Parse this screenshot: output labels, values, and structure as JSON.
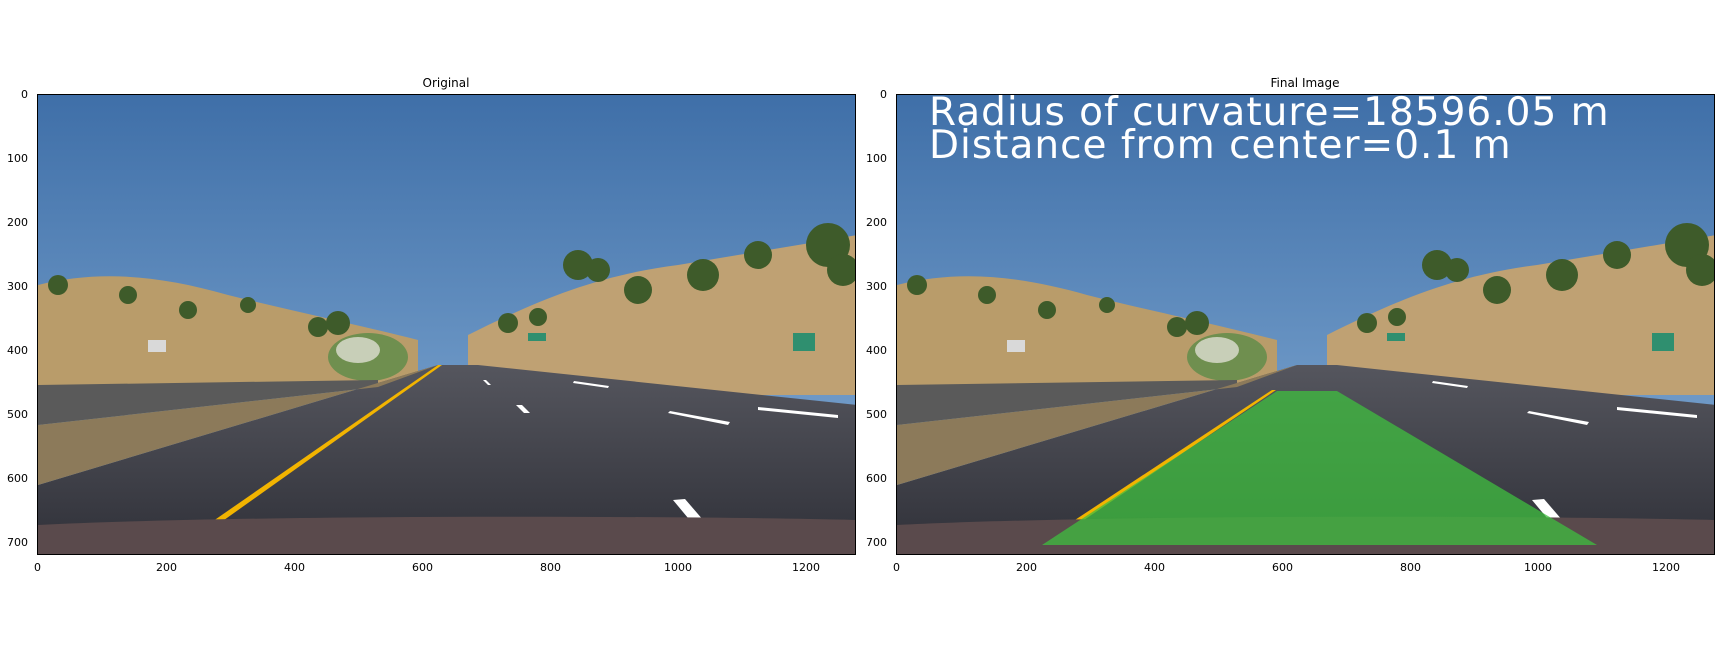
{
  "figure": {
    "panels": [
      {
        "title": "Original",
        "y_ticks": [
          "0",
          "100",
          "200",
          "300",
          "400",
          "500",
          "600",
          "700"
        ],
        "x_ticks": [
          "0",
          "200",
          "400",
          "600",
          "800",
          "1000",
          "1200"
        ]
      },
      {
        "title": "Final Image",
        "overlay": {
          "line1": "Radius of curvature=18596.05 m",
          "line2": "Distance from center=0.1 m"
        },
        "lane_fill_color": "#3fbf3f",
        "y_ticks": [
          "0",
          "100",
          "200",
          "300",
          "400",
          "500",
          "600",
          "700"
        ],
        "x_ticks": [
          "0",
          "200",
          "400",
          "600",
          "800",
          "1000",
          "1200"
        ]
      }
    ],
    "colors": {
      "sky_top": "#3f6fa8",
      "sky_bottom": "#7aa4cf",
      "hills": "#b99c6a",
      "road": "#3b3c44",
      "yellow_line": "#f2b400",
      "lane_overlay": "#3fbf3f"
    }
  }
}
